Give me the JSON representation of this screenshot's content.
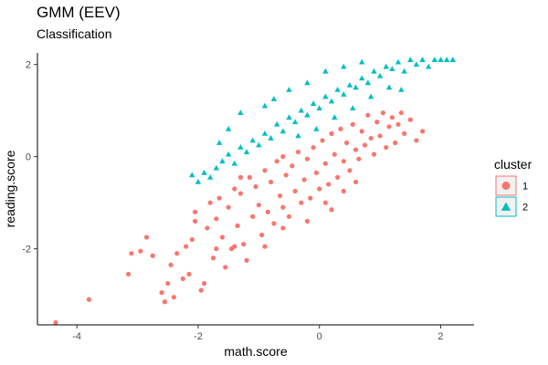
{
  "chart_data": {
    "type": "scatter",
    "title": "GMM (EEV)",
    "subtitle": "Classification",
    "xlabel": "math.score",
    "ylabel": "reading.score",
    "xlim": [
      -4.65,
      2.55
    ],
    "ylim": [
      -3.65,
      2.25
    ],
    "xticks": [
      -4,
      -2,
      0,
      2
    ],
    "xtick_labels": [
      "-4",
      "-2",
      "0",
      "2"
    ],
    "yticks": [
      -2,
      0,
      2
    ],
    "ytick_labels": [
      "-2",
      "0",
      "2"
    ],
    "grid": false,
    "legend": {
      "title": "cluster",
      "position": "right"
    },
    "series": [
      {
        "name": "1",
        "color": "#F8766D",
        "marker": "circle",
        "points": [
          [
            -4.35,
            -3.6
          ],
          [
            -3.8,
            -3.1
          ],
          [
            -3.15,
            -2.55
          ],
          [
            -3.1,
            -2.1
          ],
          [
            -2.95,
            -2.05
          ],
          [
            -2.85,
            -1.75
          ],
          [
            -2.75,
            -2.15
          ],
          [
            -2.6,
            -2.95
          ],
          [
            -2.55,
            -3.15
          ],
          [
            -2.5,
            -2.75
          ],
          [
            -2.45,
            -2.35
          ],
          [
            -2.4,
            -3.05
          ],
          [
            -2.35,
            -2.1
          ],
          [
            -2.25,
            -2.65
          ],
          [
            -2.2,
            -1.95
          ],
          [
            -2.15,
            -2.55
          ],
          [
            -2.1,
            -1.8
          ],
          [
            -2.05,
            -1.4
          ],
          [
            -2.05,
            -1.2
          ],
          [
            -1.95,
            -2.9
          ],
          [
            -1.9,
            -2.75
          ],
          [
            -1.85,
            -1.55
          ],
          [
            -1.8,
            -1.0
          ],
          [
            -1.75,
            -2.2
          ],
          [
            -1.7,
            -1.35
          ],
          [
            -1.65,
            -0.9
          ],
          [
            -1.6,
            -1.75
          ],
          [
            -1.55,
            -2.4
          ],
          [
            -1.5,
            -1.1
          ],
          [
            -1.45,
            -2.0
          ],
          [
            -1.4,
            -0.7
          ],
          [
            -1.35,
            -1.5
          ],
          [
            -1.3,
            -0.8
          ],
          [
            -1.25,
            -1.9
          ],
          [
            -1.2,
            -2.25
          ],
          [
            -1.15,
            -0.45
          ],
          [
            -1.1,
            -1.3
          ],
          [
            -1.05,
            -0.65
          ],
          [
            -1.0,
            -1.05
          ],
          [
            -0.95,
            -1.7
          ],
          [
            -0.9,
            -0.3
          ],
          [
            -0.85,
            -1.2
          ],
          [
            -0.8,
            -0.55
          ],
          [
            -0.75,
            -1.45
          ],
          [
            -0.7,
            -0.1
          ],
          [
            -0.65,
            -0.85
          ],
          [
            -0.6,
            -1.1
          ],
          [
            -0.55,
            -0.4
          ],
          [
            -0.5,
            -1.3
          ],
          [
            -0.45,
            -0.2
          ],
          [
            -0.4,
            -0.75
          ],
          [
            -0.35,
            0.1
          ],
          [
            -0.3,
            -1.0
          ],
          [
            -0.25,
            -0.5
          ],
          [
            -0.2,
            -0.05
          ],
          [
            -0.15,
            -0.9
          ],
          [
            -0.1,
            0.2
          ],
          [
            -0.05,
            -0.35
          ],
          [
            0.0,
            -0.7
          ],
          [
            0.05,
            0.35
          ],
          [
            0.1,
            -0.15
          ],
          [
            0.15,
            -0.6
          ],
          [
            0.2,
            0.5
          ],
          [
            0.25,
            0.05
          ],
          [
            0.3,
            -0.45
          ],
          [
            0.35,
            0.6
          ],
          [
            0.4,
            -0.1
          ],
          [
            0.45,
            0.3
          ],
          [
            0.5,
            -0.3
          ],
          [
            0.55,
            0.7
          ],
          [
            0.6,
            0.15
          ],
          [
            0.65,
            -0.05
          ],
          [
            0.7,
            0.55
          ],
          [
            0.75,
            0.25
          ],
          [
            0.8,
            0.9
          ],
          [
            0.85,
            0.4
          ],
          [
            0.9,
            0.05
          ],
          [
            0.95,
            0.75
          ],
          [
            1.0,
            0.45
          ],
          [
            1.05,
            0.95
          ],
          [
            1.1,
            0.2
          ],
          [
            1.15,
            0.65
          ],
          [
            1.2,
            0.85
          ],
          [
            1.25,
            0.3
          ],
          [
            1.3,
            0.7
          ],
          [
            1.35,
            0.95
          ],
          [
            1.4,
            0.5
          ],
          [
            1.5,
            0.8
          ],
          [
            1.6,
            0.35
          ],
          [
            1.7,
            0.55
          ],
          [
            -0.6,
            -1.55
          ],
          [
            -0.2,
            -1.4
          ],
          [
            0.1,
            -1.0
          ],
          [
            0.4,
            -0.75
          ],
          [
            -1.4,
            -1.95
          ],
          [
            -1.7,
            -2.0
          ],
          [
            -0.9,
            -1.95
          ],
          [
            -1.3,
            -0.45
          ],
          [
            -0.6,
            0.0
          ],
          [
            0.2,
            -1.15
          ],
          [
            0.6,
            -0.55
          ]
        ]
      },
      {
        "name": "2",
        "color": "#00BFC4",
        "marker": "triangle",
        "points": [
          [
            -2.0,
            -0.55
          ],
          [
            -1.9,
            -0.35
          ],
          [
            -1.8,
            -0.45
          ],
          [
            -1.7,
            -0.25
          ],
          [
            -1.6,
            -0.1
          ],
          [
            -1.5,
            0.05
          ],
          [
            -1.4,
            -0.15
          ],
          [
            -1.3,
            0.2
          ],
          [
            -1.2,
            0.1
          ],
          [
            -1.1,
            0.35
          ],
          [
            -1.0,
            0.25
          ],
          [
            -0.9,
            0.5
          ],
          [
            -0.8,
            0.4
          ],
          [
            -0.7,
            0.7
          ],
          [
            -0.6,
            0.55
          ],
          [
            -0.5,
            0.85
          ],
          [
            -0.4,
            0.75
          ],
          [
            -0.3,
            1.0
          ],
          [
            -0.2,
            0.9
          ],
          [
            -0.1,
            1.15
          ],
          [
            0.0,
            1.05
          ],
          [
            0.1,
            1.3
          ],
          [
            0.2,
            1.2
          ],
          [
            0.3,
            1.45
          ],
          [
            0.4,
            1.35
          ],
          [
            0.5,
            1.55
          ],
          [
            0.6,
            1.5
          ],
          [
            0.7,
            1.7
          ],
          [
            0.8,
            1.6
          ],
          [
            0.9,
            1.85
          ],
          [
            1.0,
            1.75
          ],
          [
            1.1,
            1.95
          ],
          [
            1.2,
            1.9
          ],
          [
            1.3,
            2.05
          ],
          [
            1.4,
            1.85
          ],
          [
            1.5,
            2.1
          ],
          [
            1.6,
            2.0
          ],
          [
            1.7,
            2.1
          ],
          [
            1.8,
            1.95
          ],
          [
            1.9,
            2.1
          ],
          [
            2.0,
            2.1
          ],
          [
            2.1,
            2.1
          ],
          [
            2.2,
            2.1
          ],
          [
            -0.5,
            1.45
          ],
          [
            -0.2,
            1.6
          ],
          [
            0.1,
            1.85
          ],
          [
            0.4,
            1.95
          ],
          [
            0.7,
            2.05
          ],
          [
            -0.9,
            1.1
          ],
          [
            -1.3,
            0.95
          ],
          [
            -1.5,
            0.6
          ],
          [
            -0.75,
            1.25
          ],
          [
            0.55,
            1.05
          ],
          [
            0.85,
            1.3
          ],
          [
            1.15,
            1.5
          ],
          [
            1.35,
            1.45
          ],
          [
            -0.05,
            0.6
          ],
          [
            0.25,
            0.85
          ],
          [
            -0.35,
            0.45
          ],
          [
            -1.65,
            0.3
          ],
          [
            -2.1,
            -0.4
          ]
        ]
      }
    ]
  }
}
